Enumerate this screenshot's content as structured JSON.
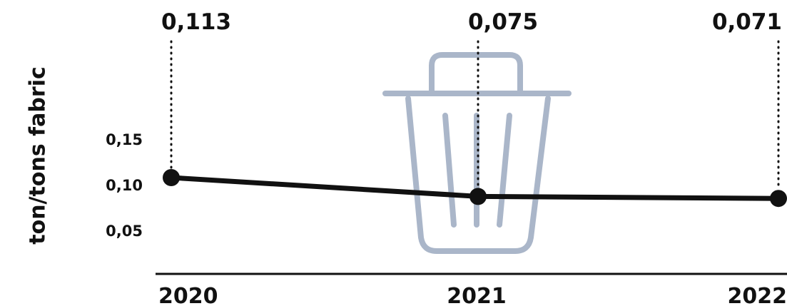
{
  "chart_data": {
    "type": "line",
    "ylabel": "ton/tons fabric",
    "yticks": [
      "0,15",
      "0,10",
      "0,05"
    ],
    "ytick_values": [
      0.15,
      0.1,
      0.05
    ],
    "ylim": [
      0.0,
      0.15
    ],
    "categories": [
      "2020",
      "2021",
      "2022"
    ],
    "series": [
      {
        "values": [
          0.113,
          0.075,
          0.071
        ],
        "data_labels": [
          "0,113",
          "0,075",
          "0,071"
        ]
      }
    ],
    "grid": false,
    "icon": "trash-bin-icon",
    "colors": {
      "line": "#111111",
      "icon": "#aab6c9",
      "text": "#111111"
    }
  }
}
